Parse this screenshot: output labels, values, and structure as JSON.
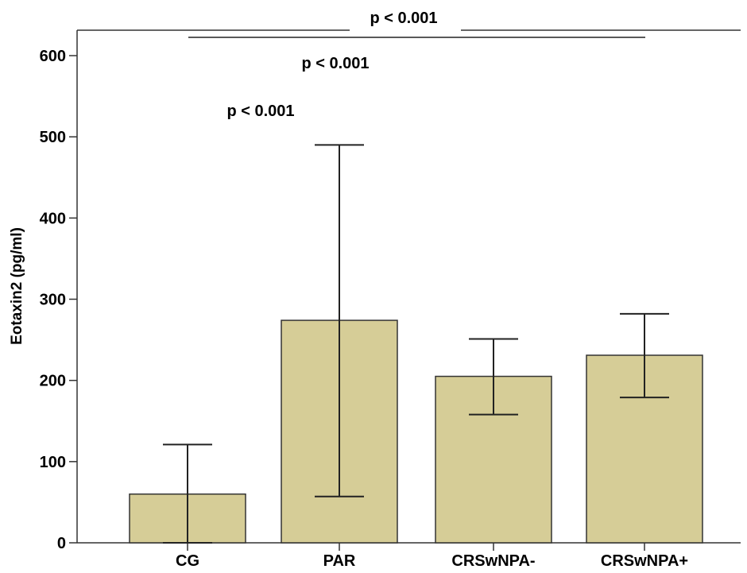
{
  "chart_data": {
    "type": "bar",
    "title": "",
    "xlabel": "",
    "ylabel": "Eotaxin2 (pg/ml)",
    "ylim": [
      0,
      620
    ],
    "yticks": [
      0,
      100,
      200,
      300,
      400,
      500,
      600
    ],
    "categories": [
      "CG",
      "PAR",
      "CRSwNPA-",
      "CRSwNPA+"
    ],
    "values": [
      60,
      274,
      205,
      231
    ],
    "error_low": [
      0,
      57,
      158,
      179
    ],
    "error_high": [
      121,
      490,
      251,
      282
    ],
    "grid": false,
    "legend": "none",
    "colors": {
      "bar_fill": "#d6cd97",
      "bar_stroke": "#333333",
      "axis": "#333333"
    },
    "significance": [
      {
        "label": "p < 0.001",
        "from": "CG",
        "to": "CRSwNPA+"
      },
      {
        "label": "p < 0.001",
        "from": "CG",
        "to": "CRSwNPA-"
      },
      {
        "label": "p < 0.001",
        "from": "CG",
        "to": "PAR"
      }
    ]
  }
}
